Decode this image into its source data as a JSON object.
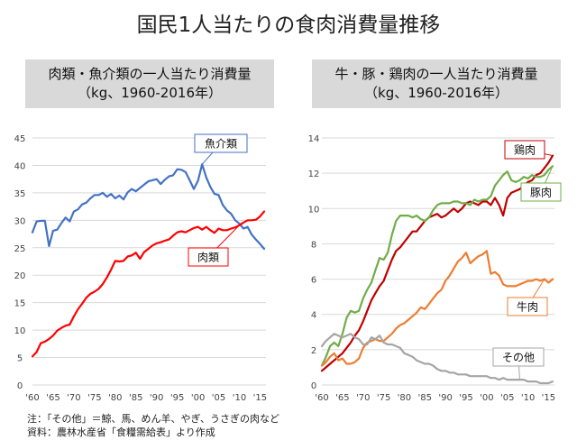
{
  "title": "国民1人当たりの食肉消費量推移",
  "charts": {
    "left": {
      "title_line1": "肉類・魚介類の一人当たり消費量",
      "title_line2": "（kg、1960-2016年）"
    },
    "right": {
      "title_line1": "牛・豚・鶏肉の一人当たり消費量",
      "title_line2": "（kg、1960-2016年）"
    }
  },
  "notes": {
    "note1": "注：「その他」＝鯨、馬、めん羊、やぎ、うさぎの肉など",
    "note2": "資料：農林水産省「食糧需給表」より作成"
  },
  "colors": {
    "fish": "#4472c4",
    "meat": "#ff0000",
    "chicken": "#c00000",
    "pork": "#70ad47",
    "beef": "#ed7d31",
    "other": "#a5a5a5",
    "grid": "#d9d9d9"
  },
  "chart_data": [
    {
      "type": "line",
      "grid": true,
      "x": [
        1960,
        1961,
        1962,
        1963,
        1964,
        1965,
        1966,
        1967,
        1968,
        1969,
        1970,
        1971,
        1972,
        1973,
        1974,
        1975,
        1976,
        1977,
        1978,
        1979,
        1980,
        1981,
        1982,
        1983,
        1984,
        1985,
        1986,
        1987,
        1988,
        1989,
        1990,
        1991,
        1992,
        1993,
        1994,
        1995,
        1996,
        1997,
        1998,
        1999,
        2000,
        2001,
        2002,
        2003,
        2004,
        2005,
        2006,
        2007,
        2008,
        2009,
        2010,
        2011,
        2012,
        2013,
        2014,
        2015,
        2016
      ],
      "xticks": [
        "'60",
        "'65",
        "'70",
        "'75",
        "'80",
        "'85",
        "'90",
        "'95",
        "'00",
        "'05",
        "'10",
        "'15"
      ],
      "ylim": [
        0,
        45
      ],
      "yticks": [
        0,
        5,
        10,
        15,
        20,
        25,
        30,
        35,
        40,
        45
      ],
      "series": [
        {
          "name": "魚介類",
          "color": "#4472c4",
          "values": [
            27.8,
            29.8,
            29.9,
            29.9,
            25.3,
            28.1,
            28.3,
            29.5,
            30.5,
            29.8,
            31.6,
            32.0,
            32.9,
            33.2,
            34.0,
            34.6,
            34.6,
            35.0,
            34.3,
            34.8,
            34.0,
            34.5,
            33.8,
            35.1,
            35.7,
            35.3,
            35.9,
            36.5,
            37.1,
            37.3,
            37.5,
            36.6,
            37.4,
            38.0,
            38.2,
            39.3,
            39.2,
            38.8,
            37.3,
            35.7,
            37.2,
            40.2,
            37.8,
            36.1,
            34.8,
            34.6,
            32.8,
            31.8,
            31.2,
            30.0,
            29.4,
            28.5,
            28.8,
            27.4,
            26.5,
            25.7,
            24.8
          ]
        },
        {
          "name": "肉類",
          "color": "#ff0000",
          "values": [
            5.2,
            6.0,
            7.6,
            7.9,
            8.4,
            9.0,
            9.9,
            10.4,
            10.8,
            11.0,
            12.5,
            13.8,
            14.8,
            15.9,
            16.6,
            17.0,
            17.5,
            18.4,
            19.6,
            21.0,
            22.6,
            22.5,
            22.6,
            23.4,
            23.6,
            24.1,
            23.0,
            24.2,
            24.8,
            25.4,
            25.8,
            26.0,
            26.3,
            26.5,
            27.2,
            27.8,
            28.0,
            27.8,
            28.2,
            28.6,
            28.8,
            28.3,
            28.8,
            28.2,
            27.7,
            28.5,
            28.2,
            28.2,
            28.5,
            28.7,
            29.1,
            29.6,
            30.0,
            30.0,
            30.1,
            30.7,
            31.6
          ]
        }
      ],
      "annotations": [
        "魚介類",
        "肉類"
      ]
    },
    {
      "type": "line",
      "grid": true,
      "x": [
        1960,
        1961,
        1962,
        1963,
        1964,
        1965,
        1966,
        1967,
        1968,
        1969,
        1970,
        1971,
        1972,
        1973,
        1974,
        1975,
        1976,
        1977,
        1978,
        1979,
        1980,
        1981,
        1982,
        1983,
        1984,
        1985,
        1986,
        1987,
        1988,
        1989,
        1990,
        1991,
        1992,
        1993,
        1994,
        1995,
        1996,
        1997,
        1998,
        1999,
        2000,
        2001,
        2002,
        2003,
        2004,
        2005,
        2006,
        2007,
        2008,
        2009,
        2010,
        2011,
        2012,
        2013,
        2014,
        2015,
        2016
      ],
      "xticks": [
        "'60",
        "'65",
        "'70",
        "'75",
        "'80",
        "'85",
        "'90",
        "'95",
        "'00",
        "'05",
        "'10",
        "'15"
      ],
      "ylim": [
        0,
        14
      ],
      "yticks": [
        0,
        2,
        4,
        6,
        8,
        10,
        12,
        14
      ],
      "series": [
        {
          "name": "鶏肉",
          "color": "#c00000",
          "values": [
            0.8,
            1.0,
            1.2,
            1.4,
            1.6,
            1.8,
            2.1,
            2.4,
            2.8,
            3.1,
            3.6,
            4.2,
            4.8,
            5.2,
            5.6,
            5.9,
            6.5,
            7.1,
            7.6,
            7.8,
            8.1,
            8.4,
            8.7,
            8.7,
            9.0,
            9.3,
            9.5,
            9.6,
            9.7,
            9.5,
            9.6,
            9.8,
            10.0,
            9.8,
            10.0,
            10.3,
            10.4,
            10.3,
            10.2,
            10.4,
            10.4,
            10.2,
            10.6,
            10.2,
            9.6,
            10.6,
            10.9,
            11.0,
            11.1,
            11.3,
            11.5,
            11.6,
            11.9,
            12.0,
            12.3,
            12.6,
            13.0
          ]
        },
        {
          "name": "豚肉",
          "color": "#70ad47",
          "values": [
            1.1,
            1.6,
            2.2,
            2.4,
            2.2,
            2.9,
            3.8,
            4.2,
            4.1,
            4.2,
            4.9,
            5.4,
            5.8,
            6.5,
            7.2,
            7.1,
            7.5,
            8.5,
            9.3,
            9.6,
            9.6,
            9.6,
            9.5,
            9.6,
            9.4,
            9.3,
            9.5,
            9.9,
            10.2,
            10.3,
            10.3,
            10.3,
            10.4,
            10.4,
            10.3,
            10.3,
            10.2,
            10.5,
            10.4,
            10.5,
            10.5,
            10.7,
            11.3,
            11.6,
            11.9,
            12.1,
            11.6,
            11.5,
            11.6,
            11.8,
            11.7,
            11.9,
            11.8,
            11.8,
            11.9,
            12.2,
            12.4
          ]
        },
        {
          "name": "牛肉",
          "color": "#ed7d31",
          "values": [
            1.1,
            1.3,
            1.6,
            1.8,
            1.4,
            1.5,
            1.2,
            1.2,
            1.3,
            1.5,
            2.1,
            2.4,
            2.5,
            2.6,
            2.5,
            2.5,
            2.7,
            2.9,
            3.2,
            3.4,
            3.5,
            3.7,
            3.9,
            4.1,
            4.4,
            4.3,
            4.6,
            4.9,
            5.2,
            5.4,
            5.9,
            6.2,
            6.6,
            7.0,
            7.2,
            7.5,
            6.9,
            7.1,
            7.3,
            7.4,
            7.6,
            6.3,
            6.4,
            6.2,
            5.7,
            5.6,
            5.6,
            5.6,
            5.7,
            5.8,
            5.9,
            5.9,
            6.0,
            5.9,
            6.0,
            5.8,
            6.0
          ]
        },
        {
          "name": "その他",
          "color": "#a5a5a5",
          "values": [
            2.2,
            2.5,
            2.7,
            2.9,
            2.8,
            2.7,
            2.8,
            2.9,
            2.7,
            2.6,
            2.3,
            2.3,
            2.7,
            2.6,
            2.8,
            2.4,
            2.3,
            2.3,
            2.2,
            2.1,
            1.8,
            1.7,
            1.6,
            1.4,
            1.3,
            1.2,
            1.2,
            1.1,
            0.9,
            0.8,
            0.8,
            0.7,
            0.7,
            0.6,
            0.6,
            0.6,
            0.5,
            0.5,
            0.5,
            0.5,
            0.5,
            0.4,
            0.4,
            0.3,
            0.4,
            0.3,
            0.3,
            0.3,
            0.3,
            0.3,
            0.2,
            0.2,
            0.2,
            0.1,
            0.1,
            0.1,
            0.2
          ]
        }
      ],
      "annotations": [
        "鶏肉",
        "豚肉",
        "牛肉",
        "その他"
      ]
    }
  ]
}
